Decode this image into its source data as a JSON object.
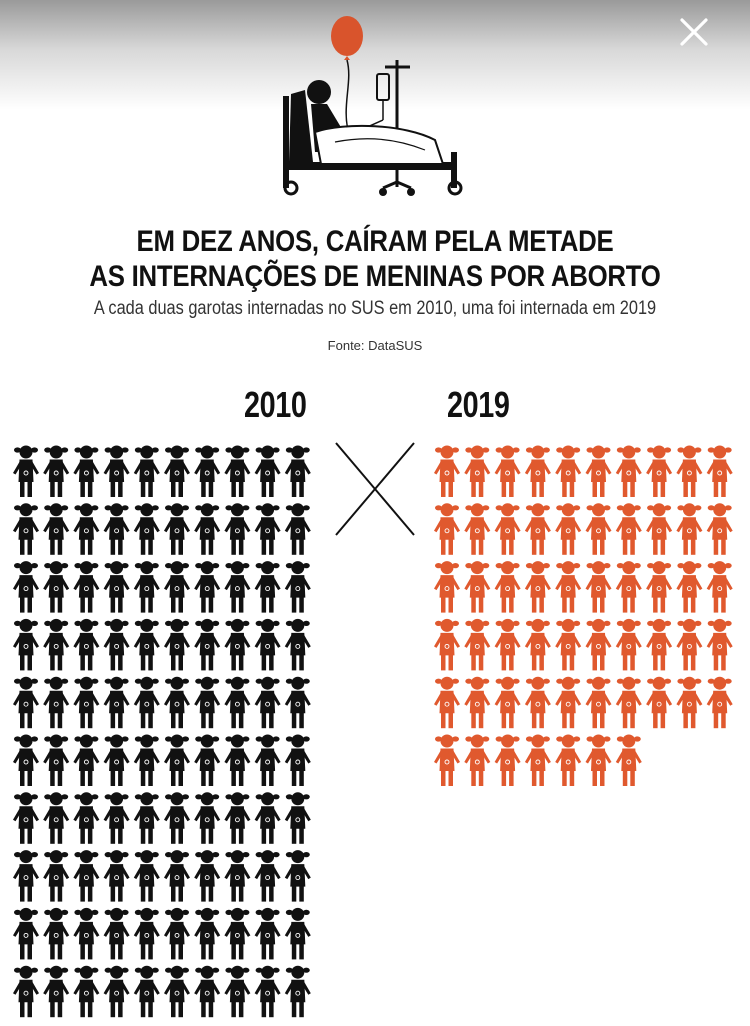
{
  "header": {
    "title_line1": "EM DEZ ANOS, CAÍRAM PELA METADE",
    "title_line2": "AS INTERNAÇÕES DE MENINAS POR ABORTO",
    "subtitle": "A cada duas garotas internadas no SUS em 2010, uma foi internada em 2019",
    "source": "Fonte: DataSUS"
  },
  "icons": {
    "close": "close-icon",
    "hero": "hospital-bed-girl-balloon-icon",
    "separator": "x-cross-icon",
    "unit": "girl-pictogram-icon"
  },
  "colors": {
    "series_2010": "#111111",
    "series_2019": "#e0592e",
    "balloon": "#d9542c"
  },
  "chart_data": {
    "type": "pictogram",
    "title": "EM DEZ ANOS, CAÍRAM PELA METADE AS INTERNAÇÕES DE MENINAS POR ABORTO",
    "series": [
      {
        "name": "2010",
        "icon_count": 100,
        "icons_per_row": 10,
        "color": "#111111"
      },
      {
        "name": "2019",
        "icon_count": 57,
        "icons_per_row": 10,
        "color": "#e0592e"
      }
    ]
  }
}
